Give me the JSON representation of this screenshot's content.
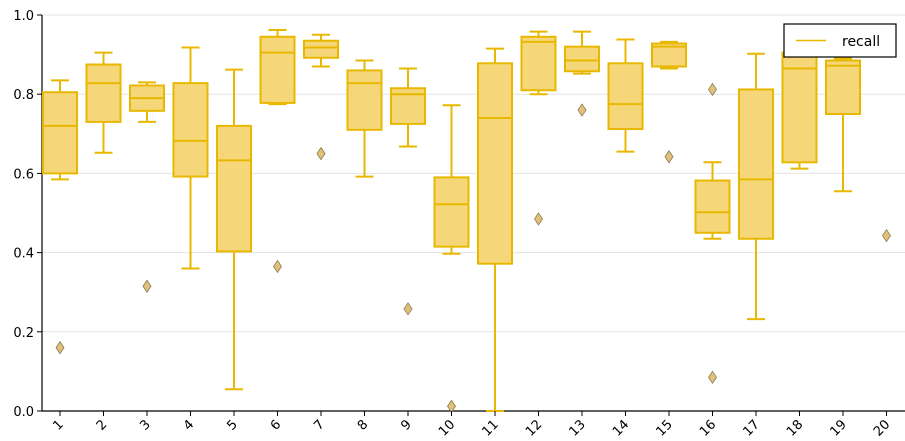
{
  "chart_data": {
    "type": "boxplot",
    "color": "#e8b800",
    "fill_color": "#f5d77a",
    "flier_color": "#e0c07a",
    "categories": [
      "1",
      "2",
      "3",
      "4",
      "5",
      "6",
      "7",
      "8",
      "9",
      "10",
      "11",
      "12",
      "13",
      "14",
      "15",
      "16",
      "17",
      "18",
      "19",
      "20"
    ],
    "ylim": [
      0.0,
      1.0
    ],
    "yticks": [
      "0.0",
      "0.2",
      "0.4",
      "0.6",
      "0.8",
      "1.0"
    ],
    "grid": true,
    "legend": {
      "entries": [
        "recall"
      ],
      "placement": "top-right"
    },
    "boxes": [
      {
        "cat": "1",
        "whislo": 0.585,
        "q1": 0.6,
        "med": 0.72,
        "q3": 0.805,
        "whishi": 0.835,
        "fliers": [
          0.16
        ]
      },
      {
        "cat": "2",
        "whislo": 0.652,
        "q1": 0.73,
        "med": 0.828,
        "q3": 0.875,
        "whishi": 0.905,
        "fliers": []
      },
      {
        "cat": "3",
        "whislo": 0.73,
        "q1": 0.758,
        "med": 0.79,
        "q3": 0.822,
        "whishi": 0.83,
        "fliers": [
          0.315
        ]
      },
      {
        "cat": "4",
        "whislo": 0.36,
        "q1": 0.592,
        "med": 0.682,
        "q3": 0.828,
        "whishi": 0.918,
        "fliers": []
      },
      {
        "cat": "5",
        "whislo": 0.055,
        "q1": 0.403,
        "med": 0.633,
        "q3": 0.72,
        "whishi": 0.862,
        "fliers": []
      },
      {
        "cat": "6",
        "whislo": 0.775,
        "q1": 0.778,
        "med": 0.905,
        "q3": 0.945,
        "whishi": 0.962,
        "fliers": [
          0.365
        ]
      },
      {
        "cat": "7",
        "whislo": 0.87,
        "q1": 0.892,
        "med": 0.918,
        "q3": 0.935,
        "whishi": 0.95,
        "fliers": [
          0.65
        ]
      },
      {
        "cat": "8",
        "whislo": 0.592,
        "q1": 0.71,
        "med": 0.828,
        "q3": 0.86,
        "whishi": 0.885,
        "fliers": []
      },
      {
        "cat": "9",
        "whislo": 0.668,
        "q1": 0.725,
        "med": 0.8,
        "q3": 0.815,
        "whishi": 0.865,
        "fliers": [
          0.258
        ]
      },
      {
        "cat": "10",
        "whislo": 0.397,
        "q1": 0.415,
        "med": 0.522,
        "q3": 0.59,
        "whishi": 0.772,
        "fliers": [
          0.012
        ]
      },
      {
        "cat": "11",
        "whislo": 0.0,
        "q1": 0.372,
        "med": 0.74,
        "q3": 0.878,
        "whishi": 0.915,
        "fliers": []
      },
      {
        "cat": "12",
        "whislo": 0.8,
        "q1": 0.81,
        "med": 0.932,
        "q3": 0.945,
        "whishi": 0.958,
        "fliers": [
          0.485
        ]
      },
      {
        "cat": "13",
        "whislo": 0.852,
        "q1": 0.858,
        "med": 0.885,
        "q3": 0.92,
        "whishi": 0.958,
        "fliers": [
          0.76
        ]
      },
      {
        "cat": "14",
        "whislo": 0.655,
        "q1": 0.712,
        "med": 0.775,
        "q3": 0.878,
        "whishi": 0.938,
        "fliers": []
      },
      {
        "cat": "15",
        "whislo": 0.865,
        "q1": 0.87,
        "med": 0.92,
        "q3": 0.928,
        "whishi": 0.932,
        "fliers": [
          0.642
        ]
      },
      {
        "cat": "16",
        "whislo": 0.435,
        "q1": 0.45,
        "med": 0.502,
        "q3": 0.582,
        "whishi": 0.628,
        "fliers": [
          0.812,
          0.085
        ]
      },
      {
        "cat": "17",
        "whislo": 0.232,
        "q1": 0.435,
        "med": 0.585,
        "q3": 0.812,
        "whishi": 0.902,
        "fliers": []
      },
      {
        "cat": "18",
        "whislo": 0.612,
        "q1": 0.628,
        "med": 0.865,
        "q3": 0.905,
        "whishi": 0.905,
        "fliers": []
      },
      {
        "cat": "19",
        "whislo": 0.555,
        "q1": 0.75,
        "med": 0.872,
        "q3": 0.885,
        "whishi": 0.89,
        "fliers": []
      },
      {
        "cat": "20",
        "whislo": null,
        "q1": null,
        "med": null,
        "q3": null,
        "whishi": null,
        "fliers": [
          0.443
        ]
      }
    ]
  }
}
